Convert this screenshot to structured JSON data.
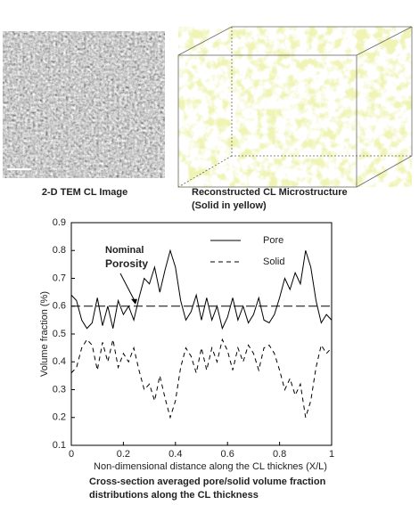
{
  "left_caption": "2-D TEM CL Image",
  "right_caption": [
    "Reconstructed CL Microstructure",
    "(Solid in yellow)"
  ],
  "figure_caption": [
    "Cross-section averaged pore/solid volume fraction",
    "distributions along the CL thickness"
  ],
  "chart_data": {
    "type": "line",
    "xlabel": "Non-dimensional distance along the CL thicknes (X/L)",
    "ylabel": "Volume fraction (%)",
    "annotation": [
      "Nominal",
      "Porosity"
    ],
    "nominal_line": 0.6,
    "x": [
      0,
      0.02,
      0.04,
      0.06,
      0.08,
      0.1,
      0.12,
      0.14,
      0.16,
      0.18,
      0.2,
      0.22,
      0.24,
      0.26,
      0.28,
      0.3,
      0.32,
      0.34,
      0.36,
      0.38,
      0.4,
      0.42,
      0.44,
      0.46,
      0.48,
      0.5,
      0.52,
      0.54,
      0.56,
      0.58,
      0.6,
      0.62,
      0.64,
      0.66,
      0.68,
      0.7,
      0.72,
      0.74,
      0.76,
      0.78,
      0.8,
      0.82,
      0.84,
      0.86,
      0.88,
      0.9,
      0.92,
      0.94,
      0.96,
      0.98,
      1
    ],
    "series": [
      {
        "name": "Pore",
        "color": "#000000",
        "dash": "solid",
        "values": [
          0.64,
          0.62,
          0.55,
          0.52,
          0.54,
          0.63,
          0.53,
          0.6,
          0.52,
          0.62,
          0.57,
          0.6,
          0.55,
          0.63,
          0.7,
          0.68,
          0.74,
          0.65,
          0.73,
          0.8,
          0.74,
          0.62,
          0.55,
          0.58,
          0.64,
          0.55,
          0.63,
          0.55,
          0.6,
          0.52,
          0.56,
          0.63,
          0.55,
          0.6,
          0.54,
          0.57,
          0.63,
          0.55,
          0.54,
          0.57,
          0.63,
          0.7,
          0.66,
          0.72,
          0.68,
          0.8,
          0.74,
          0.62,
          0.54,
          0.57,
          0.55
        ]
      },
      {
        "name": "Solid",
        "color": "#000000",
        "dash": "dashed",
        "values": [
          0.36,
          0.38,
          0.45,
          0.48,
          0.46,
          0.37,
          0.47,
          0.4,
          0.48,
          0.38,
          0.43,
          0.4,
          0.45,
          0.37,
          0.3,
          0.32,
          0.26,
          0.35,
          0.27,
          0.2,
          0.26,
          0.38,
          0.45,
          0.42,
          0.36,
          0.45,
          0.37,
          0.45,
          0.4,
          0.48,
          0.44,
          0.37,
          0.45,
          0.4,
          0.46,
          0.43,
          0.37,
          0.45,
          0.46,
          0.43,
          0.37,
          0.3,
          0.34,
          0.28,
          0.32,
          0.2,
          0.26,
          0.38,
          0.46,
          0.43,
          0.45
        ]
      }
    ],
    "xlim": [
      0,
      1
    ],
    "xticks": [
      0,
      0.2,
      0.4,
      0.6,
      0.8,
      1
    ],
    "ylim": [
      0.1,
      0.9
    ],
    "yticks": [
      0.1,
      0.2,
      0.3,
      0.4,
      0.5,
      0.6,
      0.7,
      0.8,
      0.9
    ]
  }
}
